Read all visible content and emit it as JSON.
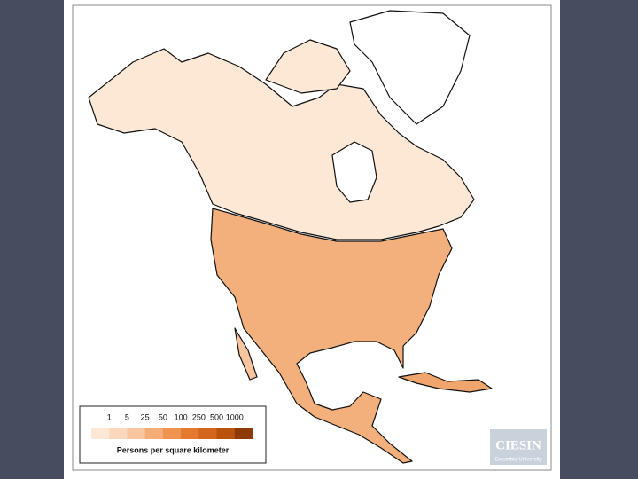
{
  "legend": {
    "ticks": [
      "1",
      "5",
      "25",
      "50",
      "100",
      "250",
      "500",
      "1000"
    ],
    "colors": [
      "#fde8d6",
      "#fbd8bd",
      "#f8c59f",
      "#f4ad78",
      "#ee9350",
      "#e57a2f",
      "#d4651c",
      "#b9520f",
      "#8f3a05"
    ],
    "title": "Persons per square kilometer"
  },
  "logo": {
    "name": "CIESIN",
    "subtitle": "Columbia University"
  }
}
